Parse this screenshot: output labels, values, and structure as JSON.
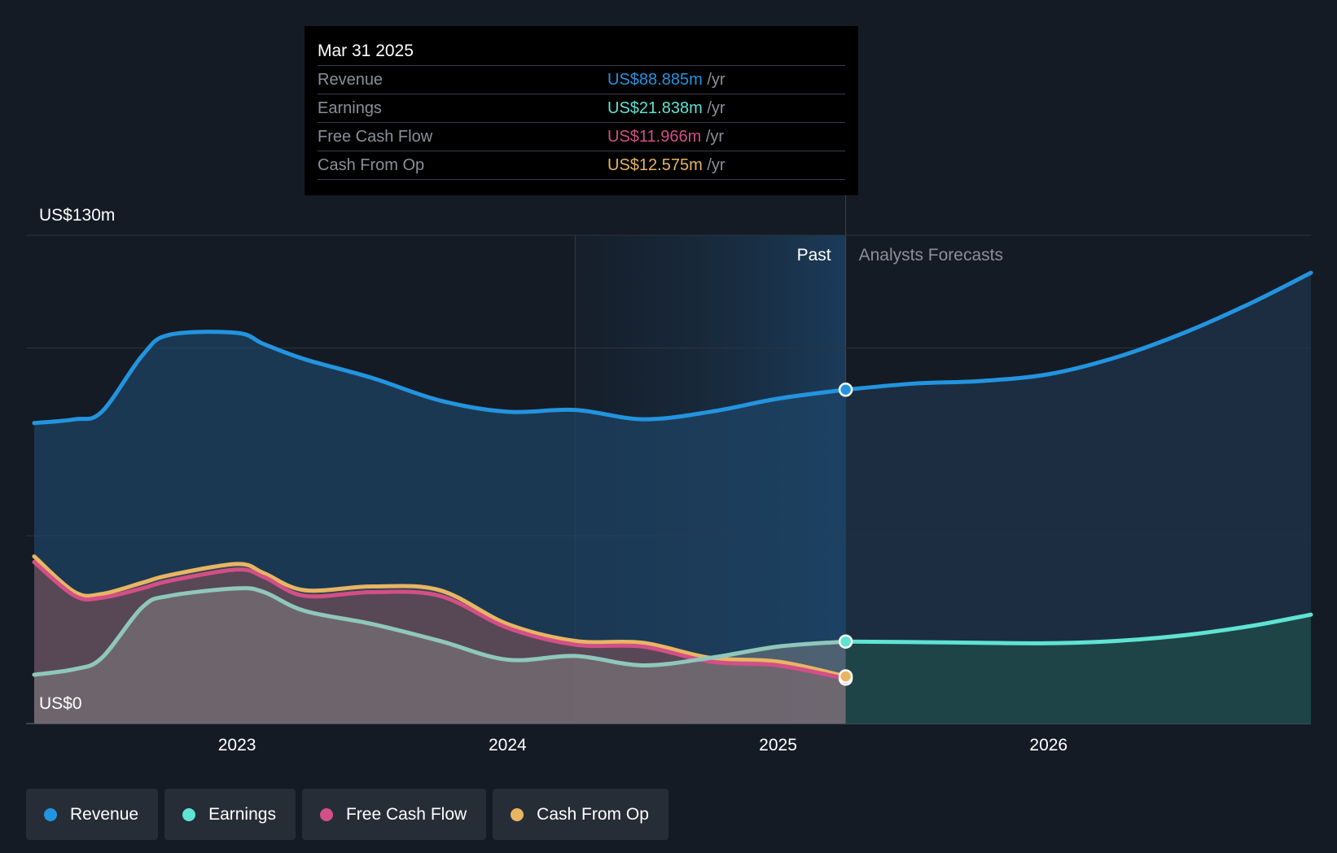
{
  "colors": {
    "revenue": "#2394df",
    "earnings": "#5fe3d2",
    "free_cash_flow": "#d24f87",
    "cash_from_op": "#e8b563",
    "background": "#151b24"
  },
  "tooltip": {
    "date": "Mar 31 2025",
    "rows": [
      {
        "label": "Revenue",
        "value": "US$88.885m",
        "unit": "/yr"
      },
      {
        "label": "Earnings",
        "value": "US$21.838m",
        "unit": "/yr"
      },
      {
        "label": "Free Cash Flow",
        "value": "US$11.966m",
        "unit": "/yr"
      },
      {
        "label": "Cash From Op",
        "value": "US$12.575m",
        "unit": "/yr"
      }
    ]
  },
  "legend": [
    {
      "label": "Revenue",
      "icon": "revenue-dot-icon"
    },
    {
      "label": "Earnings",
      "icon": "earnings-dot-icon"
    },
    {
      "label": "Free Cash Flow",
      "icon": "free-cash-flow-dot-icon"
    },
    {
      "label": "Cash From Op",
      "icon": "cash-from-op-dot-icon"
    }
  ],
  "chart_data": {
    "type": "area",
    "title": "",
    "y_top_label": "US$130m",
    "y_bottom_label": "US$0",
    "ylim": [
      0,
      130
    ],
    "xlim": [
      2022.22,
      2026.97
    ],
    "x_ticks": [
      2023,
      2024,
      2025,
      2026
    ],
    "x_tick_labels": [
      "2023",
      "2024",
      "2025",
      "2026"
    ],
    "gridlines": [
      0,
      50,
      100,
      130
    ],
    "past_label": "Past",
    "forecast_label": "Analysts Forecasts",
    "past_region_start": 2024.25,
    "past_end": 2025.25,
    "series": [
      {
        "name": "Revenue",
        "key": "revenue",
        "x": [
          2022.25,
          2022.4,
          2022.5,
          2022.65,
          2022.75,
          2023.0,
          2023.1,
          2023.25,
          2023.5,
          2023.75,
          2024.0,
          2024.25,
          2024.5,
          2024.75,
          2025.0,
          2025.25
        ],
        "values": [
          80,
          81,
          83,
          98,
          103.5,
          104,
          101,
          97,
          92,
          86,
          83,
          83.5,
          81,
          83,
          86.5,
          88.885
        ]
      },
      {
        "name": "Revenue forecast",
        "key": "revenue",
        "forecast": true,
        "x": [
          2025.25,
          2025.5,
          2025.75,
          2026.0,
          2026.25,
          2026.5,
          2026.75,
          2026.97
        ],
        "values": [
          88.885,
          90.5,
          91.2,
          93,
          97.5,
          104,
          112,
          120
        ]
      },
      {
        "name": "Earnings",
        "key": "earnings",
        "x": [
          2022.25,
          2022.4,
          2022.5,
          2022.65,
          2022.75,
          2023.0,
          2023.1,
          2023.25,
          2023.5,
          2023.75,
          2024.0,
          2024.25,
          2024.5,
          2024.75,
          2025.0,
          2025.25
        ],
        "values": [
          13,
          14.5,
          17.5,
          31,
          34,
          36,
          35,
          30,
          26.5,
          22,
          17,
          18,
          15.5,
          17.5,
          20.5,
          21.838
        ]
      },
      {
        "name": "Earnings forecast",
        "key": "earnings",
        "forecast": true,
        "x": [
          2025.25,
          2025.5,
          2025.75,
          2026.0,
          2026.25,
          2026.5,
          2026.75,
          2026.97
        ],
        "values": [
          21.838,
          21.7,
          21.5,
          21.4,
          22,
          23.5,
          26,
          29
        ]
      },
      {
        "name": "Free Cash Flow",
        "key": "free_cash_flow",
        "x": [
          2022.25,
          2022.4,
          2022.5,
          2022.65,
          2022.75,
          2023.0,
          2023.1,
          2023.25,
          2023.5,
          2023.75,
          2024.0,
          2024.25,
          2024.5,
          2024.75,
          2025.0,
          2025.25
        ],
        "values": [
          43,
          34,
          33.5,
          36,
          38,
          41,
          39,
          34,
          35,
          34,
          25.5,
          21,
          20.5,
          16.5,
          15.5,
          11.966
        ]
      },
      {
        "name": "Cash From Op",
        "key": "cash_from_op",
        "x": [
          2022.25,
          2022.4,
          2022.5,
          2022.65,
          2022.75,
          2023.0,
          2023.1,
          2023.25,
          2023.5,
          2023.75,
          2024.0,
          2024.25,
          2024.5,
          2024.75,
          2025.0,
          2025.25
        ],
        "values": [
          44.5,
          35,
          34.5,
          37.5,
          39.5,
          42.5,
          40,
          35.5,
          36.5,
          35.5,
          26.5,
          22,
          21.5,
          17.5,
          16.5,
          12.575
        ]
      }
    ]
  }
}
